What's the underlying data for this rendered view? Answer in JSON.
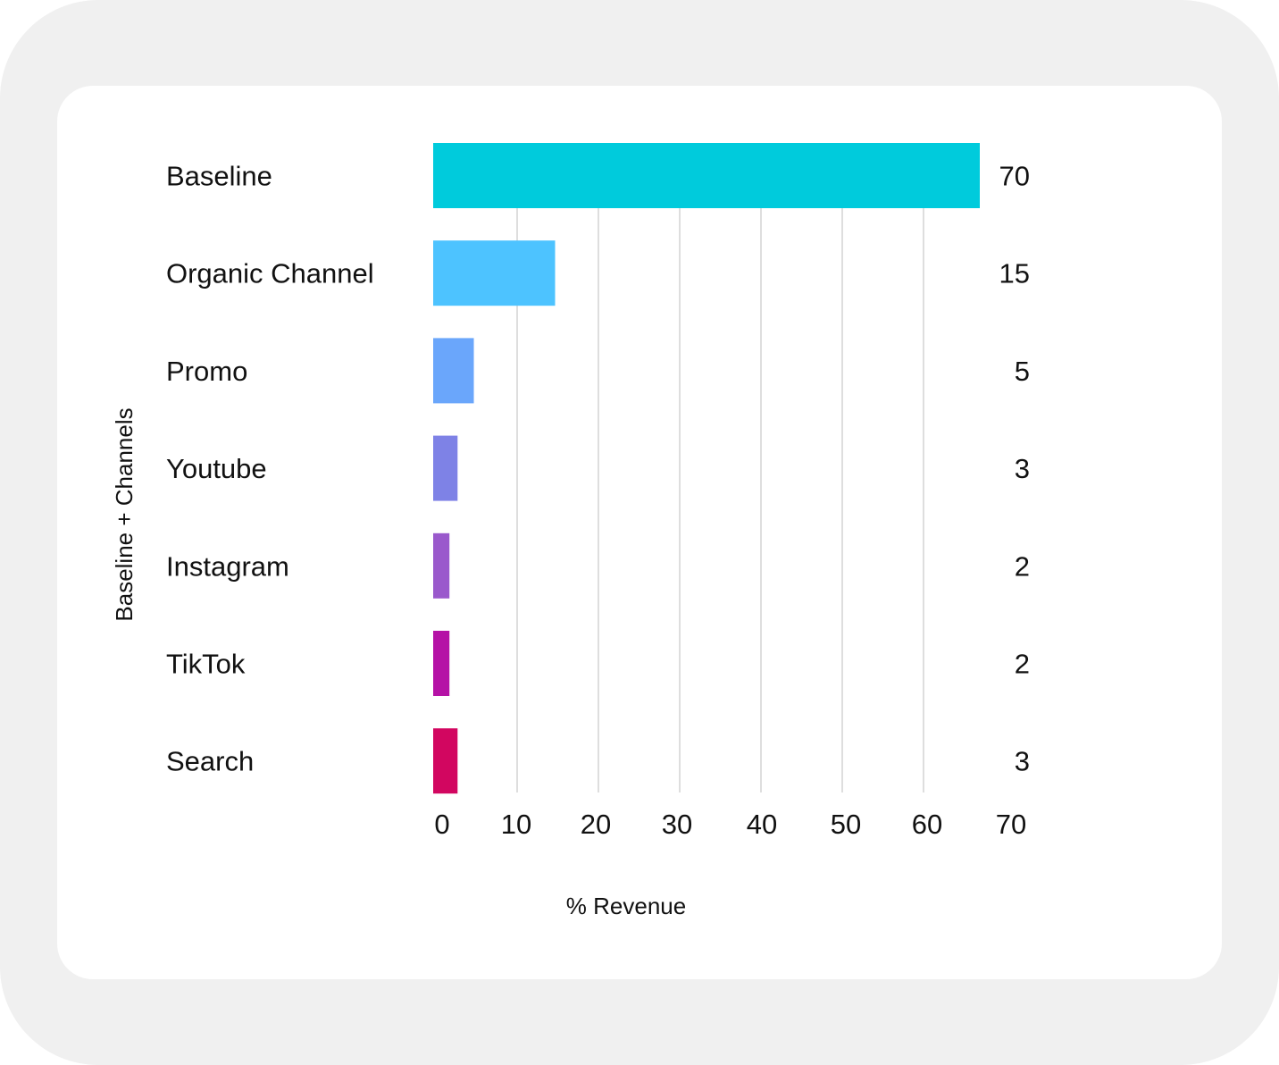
{
  "chart_data": {
    "type": "bar",
    "orientation": "horizontal",
    "categories": [
      "Baseline",
      "Organic Channel",
      "Promo",
      "Youtube",
      "Instagram",
      "TikTok",
      "Search"
    ],
    "values": [
      70,
      15,
      5,
      3,
      2,
      2,
      3
    ],
    "data_labels": [
      "70",
      "15",
      "5",
      "3",
      "2",
      "2",
      "3"
    ],
    "colors": [
      "#00CBDC",
      "#4DC3FF",
      "#6AA6FB",
      "#7E82E6",
      "#9A59CC",
      "#B512A6",
      "#D20660"
    ],
    "xlabel": "% Revenue",
    "ylabel": "Baseline + Channels",
    "xlim": [
      0,
      70
    ],
    "xticks": [
      0,
      10,
      20,
      30,
      40,
      50,
      60,
      70
    ],
    "grid": true,
    "legend": "none"
  }
}
